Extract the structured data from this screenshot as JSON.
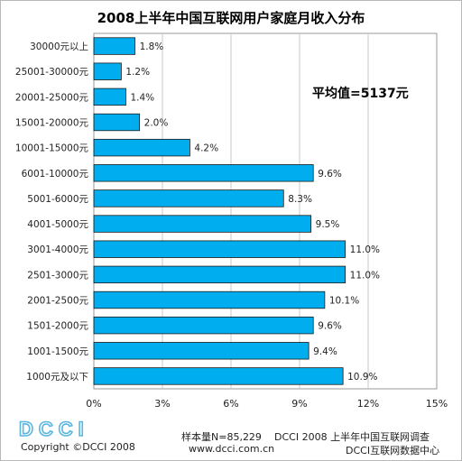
{
  "chart_data": {
    "type": "bar",
    "orientation": "horizontal",
    "title": "2008上半年中国互联网用户家庭月收入分布",
    "categories": [
      "30000元以上",
      "25001-30000元",
      "20001-25000元",
      "15001-20000元",
      "10001-15000元",
      "6001-10000元",
      "5001-6000元",
      "4001-5000元",
      "3001-4000元",
      "2501-3000元",
      "2001-2500元",
      "1501-2000元",
      "1001-1500元",
      "1000元及以下"
    ],
    "values": [
      1.8,
      1.2,
      1.4,
      2.0,
      4.2,
      9.6,
      8.3,
      9.5,
      11.0,
      11.0,
      10.1,
      9.6,
      9.4,
      10.9
    ],
    "value_labels": [
      "1.8%",
      "1.2%",
      "1.4%",
      "2.0%",
      "4.2%",
      "9.6%",
      "8.3%",
      "9.5%",
      "11.0%",
      "11.0%",
      "10.1%",
      "9.6%",
      "9.4%",
      "10.9%"
    ],
    "xlim": [
      0,
      15
    ],
    "xticks": [
      "0%",
      "3%",
      "6%",
      "9%",
      "12%",
      "15%"
    ],
    "annotation": "平均值=5137元",
    "bar_color": "#00aeef",
    "grid": true
  },
  "footer": {
    "logo_text": "DCCI",
    "copyright": "Copyright ©DCCI 2008",
    "sample": "样本量N=85,229",
    "survey": "DCCI 2008 上半年中国互联网调查",
    "website": "www.dcci.com.cn",
    "center": "DCCI互联网数据中心"
  }
}
